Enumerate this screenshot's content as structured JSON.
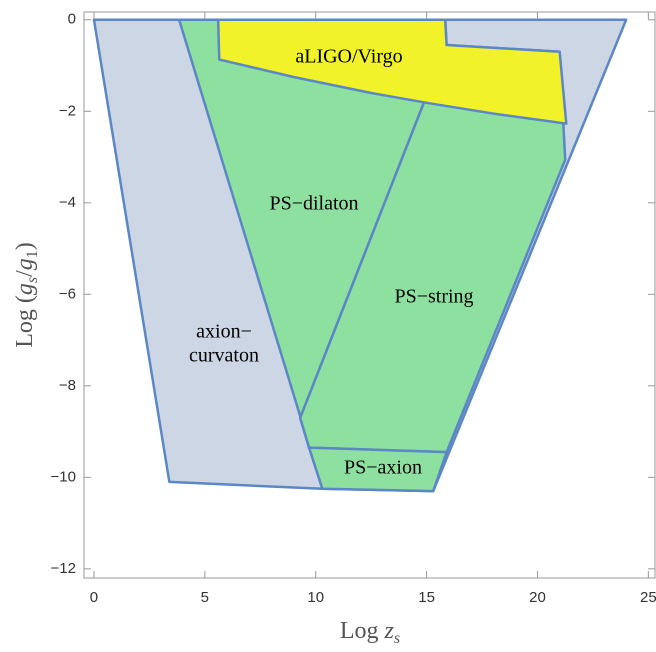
{
  "chart_data": {
    "type": "region",
    "xlabel": [
      "Log ",
      "z",
      "s"
    ],
    "ylabel": [
      "Log (",
      "g",
      "s",
      "/",
      "g",
      "1",
      ")"
    ],
    "xlim": [
      -0.45,
      25.3
    ],
    "ylim": [
      -12.2,
      0.17
    ],
    "xticks": [
      0,
      5,
      10,
      15,
      20,
      25
    ],
    "yticks": [
      {
        "value": -12,
        "label": "−12"
      },
      {
        "value": -10,
        "label": "−10"
      },
      {
        "value": -8,
        "label": "−8"
      },
      {
        "value": -6,
        "label": "−6"
      },
      {
        "value": -4,
        "label": "−4"
      },
      {
        "value": -2,
        "label": "−2"
      },
      0
    ],
    "stroke": "#5b87c5",
    "series": [
      {
        "name": [
          "axion−",
          "curvaton"
        ],
        "color": "#cdd6e4",
        "x": [
          0,
          24,
          15.3,
          10.3,
          3.4
        ],
        "values": [
          0,
          0,
          -10.3,
          -10.25,
          -10.1
        ]
      },
      {
        "name": [
          "PS−dilaton"
        ],
        "color": "#8ee0a0",
        "x": [
          3.84,
          15.84,
          15.9,
          9.3,
          9.7,
          10.3
        ],
        "values": [
          0,
          0,
          -0.55,
          -8.7,
          -9.35,
          -10.25
        ]
      },
      {
        "name": [
          "PS−string"
        ],
        "color": "#8ee0a0",
        "x": [
          9.3,
          15.9,
          21.0,
          21.25,
          15.9,
          9.7
        ],
        "values": [
          -8.7,
          -0.55,
          -0.7,
          -3.06,
          -9.45,
          -9.35
        ]
      },
      {
        "name": [
          "PS−axion"
        ],
        "color": "#8ee0a0",
        "x": [
          9.7,
          15.9,
          15.3,
          10.3
        ],
        "values": [
          -9.35,
          -9.45,
          -10.3,
          -10.25
        ]
      },
      {
        "name": [
          "aLIGO/Virgo"
        ],
        "color": "#f2f22a",
        "x": [
          5.6,
          15.84,
          15.9,
          21.0,
          21.3,
          18,
          15.07,
          12.5,
          9.0,
          5.65
        ],
        "values": [
          0,
          0,
          -0.55,
          -0.7,
          -2.27,
          -2.05,
          -1.82,
          -1.6,
          -1.25,
          -0.87
        ]
      }
    ]
  }
}
